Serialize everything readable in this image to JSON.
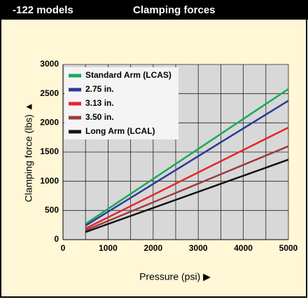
{
  "header": {
    "left": "-122 models",
    "right": "Clamping forces"
  },
  "chart_data": {
    "type": "line",
    "x_label": "Pressure (psi) ▶",
    "y_label": "Clamping force (lbs) ▲",
    "x": [
      500,
      5000
    ],
    "series": [
      {
        "name": "Standard Arm (LCAS)",
        "color": "#1aa85a",
        "values": [
          270,
          2580
        ]
      },
      {
        "name": "2.75 in.",
        "color": "#2e3a96",
        "values": [
          240,
          2380
        ]
      },
      {
        "name": "3.13 in.",
        "color": "#e5262b",
        "values": [
          190,
          1920
        ]
      },
      {
        "name": "3.50 in.",
        "color": "#9c3b3d",
        "values": [
          160,
          1600
        ]
      },
      {
        "name": "Long Arm  (LCAL)",
        "color": "#111111",
        "values": [
          130,
          1370
        ]
      }
    ],
    "xlim": [
      0,
      5000
    ],
    "xticks": [
      0,
      1000,
      2000,
      3000,
      4000,
      5000
    ],
    "ylim": [
      0,
      3000
    ],
    "yticks": [
      0,
      500,
      1000,
      1500,
      2000,
      2500,
      3000
    ],
    "grid": true,
    "legend": "upper left"
  }
}
